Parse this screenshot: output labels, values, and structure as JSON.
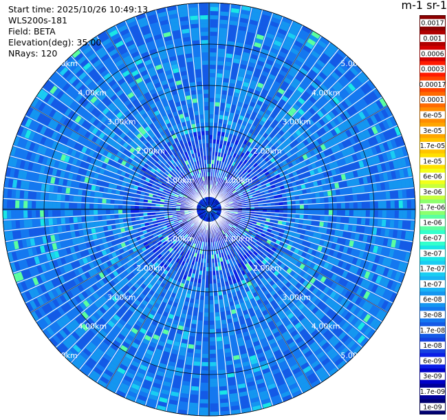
{
  "header": {
    "start_time": "Start time: 2025/10/26 10:49:13",
    "instrument": "WLS200s-181",
    "field": "Field: BETA",
    "elevation": "Elevation(deg): 35.00",
    "nrays": "NRays: 120",
    "unit_title": "m-1 sr-1"
  },
  "chart_data": {
    "type": "heatmap",
    "projection": "polar (PPI)",
    "field": "BETA",
    "elevation_deg": 35.0,
    "n_rays": 120,
    "range_rings_km": [
      1,
      2,
      3,
      4,
      5
    ],
    "ring_labels": [
      "1.00km",
      "2.00km",
      "3.00km",
      "4.00km",
      "5.00km"
    ],
    "max_range_km": 6.0,
    "colorbar": {
      "scale": "log",
      "ticks": [
        "0.0017",
        "0.001",
        "0.0006",
        "0.0003",
        "0.00017",
        "0.0001",
        "6e-05",
        "3e-05",
        "1.7e-05",
        "1e-05",
        "6e-06",
        "3e-06",
        "1.7e-06",
        "1e-06",
        "6e-07",
        "3e-07",
        "1.7e-07",
        "1e-07",
        "6e-08",
        "3e-08",
        "1.7e-08",
        "1e-08",
        "6e-09",
        "3e-09",
        "1.7e-09",
        "1e-09"
      ],
      "colors": [
        "#8b0000",
        "#b00000",
        "#d40000",
        "#ff1a00",
        "#ff4400",
        "#ff6a00",
        "#ff8c00",
        "#ffa500",
        "#ffc400",
        "#ffe000",
        "#f2ff1a",
        "#c8ff3c",
        "#8cff6e",
        "#5cffa0",
        "#33ffcc",
        "#1ae6e6",
        "#1acdf2",
        "#1ab4f5",
        "#1496f0",
        "#1478f0",
        "#145ae6",
        "#1440e0",
        "#0a1ee6",
        "#0000c8",
        "#00009a",
        "#000070"
      ]
    }
  }
}
